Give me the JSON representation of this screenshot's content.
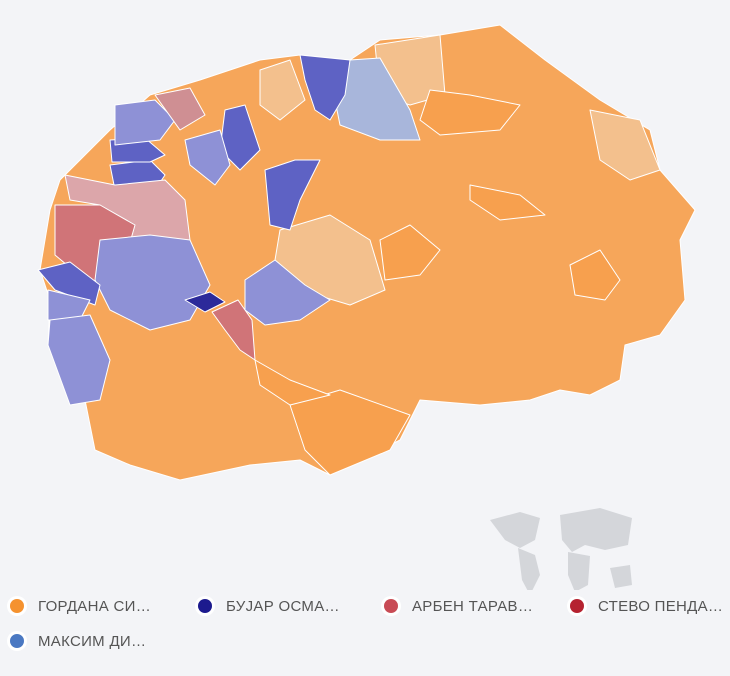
{
  "legend": {
    "items": [
      {
        "label": "ГОРДАНА СИ…",
        "color": "#f5922f"
      },
      {
        "label": "БУЈАР ОСМА…",
        "color": "#1c1a8e"
      },
      {
        "label": "АРБЕН ТАРАВ…",
        "color": "#c84b55"
      },
      {
        "label": "СТЕВО ПЕНДА…",
        "color": "#b52230"
      },
      {
        "label": "МАКСИМ ДИ…",
        "color": "#4a78c2"
      }
    ]
  }
}
